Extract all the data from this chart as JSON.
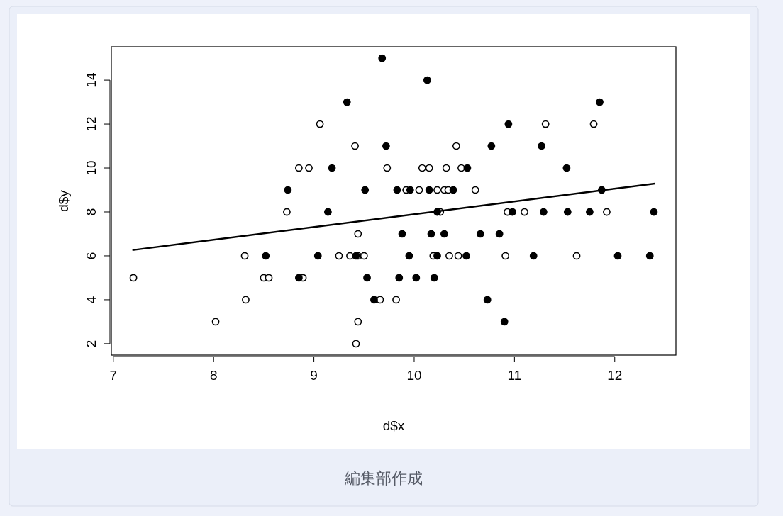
{
  "chart_data": {
    "type": "scatter",
    "xlabel": "d$x",
    "ylabel": "d$y",
    "xlim": [
      6.98,
      12.61
    ],
    "ylim": [
      1.48,
      15.52
    ],
    "xticks": [
      7,
      8,
      9,
      10,
      11,
      12
    ],
    "yticks": [
      2,
      4,
      6,
      8,
      10,
      12,
      14
    ],
    "series": [
      {
        "marker": "circle",
        "color": "#ffffff",
        "x": [
          9.06,
          11.31,
          11.79,
          9.41,
          10.42,
          8.85,
          8.95,
          9.73,
          10.08,
          10.15,
          10.32,
          10.47,
          9.92,
          10.05,
          10.23,
          10.3,
          10.34,
          10.61,
          8.73,
          10.26,
          10.93,
          11.1,
          11.92,
          9.44,
          8.31,
          9.25,
          9.36,
          9.44,
          9.5,
          10.19,
          10.35,
          10.44,
          10.91,
          11.62,
          7.2,
          8.5,
          8.55,
          8.89,
          8.32,
          9.66,
          9.82,
          8.02,
          9.44,
          9.42
        ],
        "values": [
          12,
          12,
          12,
          11,
          11,
          10,
          10,
          10,
          10,
          10,
          10,
          10,
          9,
          9,
          9,
          9,
          9,
          9,
          8,
          8,
          8,
          8,
          8,
          7,
          6,
          6,
          6,
          6,
          6,
          6,
          6,
          6,
          6,
          6,
          5,
          5,
          5,
          5,
          4,
          4,
          4,
          3,
          3,
          2
        ]
      },
      {
        "marker": "circle",
        "color": "#000000",
        "x": [
          9.68,
          10.13,
          9.33,
          11.85,
          10.94,
          9.72,
          10.77,
          11.27,
          9.18,
          10.53,
          11.52,
          8.74,
          9.51,
          9.83,
          9.96,
          10.15,
          10.39,
          11.87,
          9.14,
          10.23,
          10.98,
          11.29,
          11.53,
          11.75,
          12.39,
          9.88,
          10.17,
          10.3,
          10.66,
          10.85,
          8.52,
          9.04,
          9.42,
          9.95,
          10.23,
          10.52,
          11.19,
          12.03,
          12.35,
          8.85,
          9.53,
          9.85,
          10.02,
          10.2,
          9.6,
          10.73,
          10.9
        ],
        "values": [
          15,
          14,
          13,
          13,
          12,
          11,
          11,
          11,
          10,
          10,
          10,
          9,
          9,
          9,
          9,
          9,
          9,
          9,
          8,
          8,
          8,
          8,
          8,
          8,
          8,
          7,
          7,
          7,
          7,
          7,
          6,
          6,
          6,
          6,
          6,
          6,
          6,
          6,
          6,
          5,
          5,
          5,
          5,
          5,
          4,
          4,
          3
        ]
      },
      {
        "type": "line",
        "color": "#000000",
        "x": [
          7.19,
          12.4
        ],
        "values": [
          6.26,
          9.29
        ]
      }
    ],
    "annotations": [
      "編集部作成"
    ]
  }
}
